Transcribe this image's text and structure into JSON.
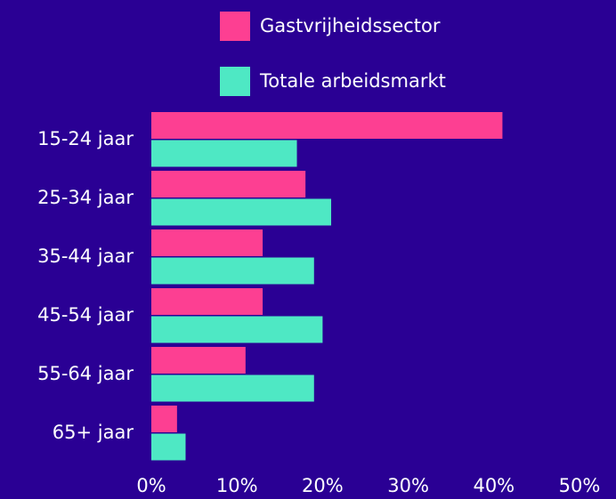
{
  "chart_data": {
    "type": "hbar",
    "categories": [
      "15-24 jaar",
      "25-34 jaar",
      "35-44 jaar",
      "45-54 jaar",
      "55-64 jaar",
      "65+ jaar"
    ],
    "series": [
      {
        "name": "Gastvrijheidssector",
        "color": "#fd3f92",
        "values": [
          41,
          18,
          13,
          13,
          11,
          3
        ]
      },
      {
        "name": "Totale arbeidsmarkt",
        "color": "#4ee8c4",
        "values": [
          17,
          21,
          19,
          20,
          19,
          4
        ]
      }
    ],
    "xlim": [
      0,
      50
    ],
    "xticks": [
      {
        "value": 0,
        "label": "0%"
      },
      {
        "value": 10,
        "label": "10%"
      },
      {
        "value": 20,
        "label": "20%"
      },
      {
        "value": 30,
        "label": "30%"
      },
      {
        "value": 40,
        "label": "40%"
      },
      {
        "value": 50,
        "label": "50%"
      }
    ],
    "legend": "top"
  }
}
